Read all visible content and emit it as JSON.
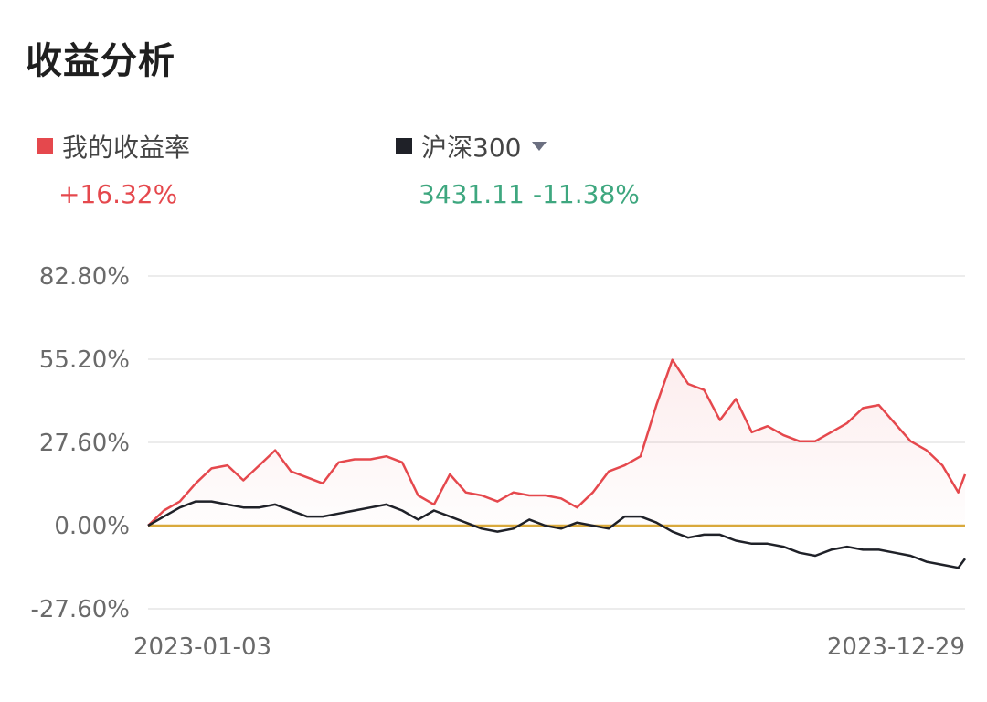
{
  "header": {
    "title": "收益分析"
  },
  "legend": {
    "mine": {
      "label": "我的收益率",
      "value": "+16.32%",
      "color": "#e5484d"
    },
    "index": {
      "label": "沪深300",
      "close": "3431.11",
      "change": "-11.38%",
      "color": "#1f2128"
    }
  },
  "colors": {
    "positive": "#e5484d",
    "negative": "#3ea77f",
    "baseline": "#d9a93c",
    "grid": "#e6e6e6"
  },
  "chart_data": {
    "type": "line",
    "y_ticks": [
      "82.80%",
      "55.20%",
      "27.60%",
      "0.00%",
      "-27.60%"
    ],
    "y_tick_values": [
      82.8,
      55.2,
      27.6,
      0,
      -27.6
    ],
    "ylim": [
      -27.6,
      82.8
    ],
    "x_labels": [
      "2023-01-03",
      "2023-12-29"
    ],
    "xlim": [
      "2023-01-03",
      "2023-12-29"
    ],
    "grid": "horizontal",
    "series": [
      {
        "name": "我的收益率",
        "color": "#e5484d",
        "area": true,
        "points": [
          [
            "2023-01-03",
            0
          ],
          [
            "2023-01-10",
            5
          ],
          [
            "2023-01-17",
            8
          ],
          [
            "2023-01-24",
            14
          ],
          [
            "2023-01-31",
            19
          ],
          [
            "2023-02-07",
            20
          ],
          [
            "2023-02-14",
            15
          ],
          [
            "2023-02-21",
            20
          ],
          [
            "2023-02-28",
            25
          ],
          [
            "2023-03-07",
            18
          ],
          [
            "2023-03-14",
            16
          ],
          [
            "2023-03-21",
            14
          ],
          [
            "2023-03-28",
            21
          ],
          [
            "2023-04-04",
            22
          ],
          [
            "2023-04-11",
            22
          ],
          [
            "2023-04-18",
            23
          ],
          [
            "2023-04-25",
            21
          ],
          [
            "2023-05-02",
            10
          ],
          [
            "2023-05-09",
            7
          ],
          [
            "2023-05-16",
            17
          ],
          [
            "2023-05-23",
            11
          ],
          [
            "2023-05-30",
            10
          ],
          [
            "2023-06-06",
            8
          ],
          [
            "2023-06-13",
            11
          ],
          [
            "2023-06-20",
            10
          ],
          [
            "2023-06-27",
            10
          ],
          [
            "2023-07-04",
            9
          ],
          [
            "2023-07-11",
            6
          ],
          [
            "2023-07-18",
            11
          ],
          [
            "2023-07-25",
            18
          ],
          [
            "2023-08-01",
            20
          ],
          [
            "2023-08-08",
            23
          ],
          [
            "2023-08-15",
            40
          ],
          [
            "2023-08-22",
            55
          ],
          [
            "2023-08-29",
            47
          ],
          [
            "2023-09-05",
            45
          ],
          [
            "2023-09-12",
            35
          ],
          [
            "2023-09-19",
            42
          ],
          [
            "2023-09-26",
            31
          ],
          [
            "2023-10-03",
            33
          ],
          [
            "2023-10-10",
            30
          ],
          [
            "2023-10-17",
            28
          ],
          [
            "2023-10-24",
            28
          ],
          [
            "2023-10-31",
            31
          ],
          [
            "2023-11-07",
            34
          ],
          [
            "2023-11-14",
            39
          ],
          [
            "2023-11-21",
            40
          ],
          [
            "2023-11-28",
            34
          ],
          [
            "2023-12-05",
            28
          ],
          [
            "2023-12-12",
            25
          ],
          [
            "2023-12-19",
            20
          ],
          [
            "2023-12-26",
            11
          ],
          [
            "2023-12-29",
            17
          ]
        ]
      },
      {
        "name": "沪深300",
        "color": "#1f2128",
        "area": false,
        "points": [
          [
            "2023-01-03",
            0
          ],
          [
            "2023-01-10",
            3
          ],
          [
            "2023-01-17",
            6
          ],
          [
            "2023-01-24",
            8
          ],
          [
            "2023-01-31",
            8
          ],
          [
            "2023-02-07",
            7
          ],
          [
            "2023-02-14",
            6
          ],
          [
            "2023-02-21",
            6
          ],
          [
            "2023-02-28",
            7
          ],
          [
            "2023-03-07",
            5
          ],
          [
            "2023-03-14",
            3
          ],
          [
            "2023-03-21",
            3
          ],
          [
            "2023-03-28",
            4
          ],
          [
            "2023-04-04",
            5
          ],
          [
            "2023-04-11",
            6
          ],
          [
            "2023-04-18",
            7
          ],
          [
            "2023-04-25",
            5
          ],
          [
            "2023-05-02",
            2
          ],
          [
            "2023-05-09",
            5
          ],
          [
            "2023-05-16",
            3
          ],
          [
            "2023-05-23",
            1
          ],
          [
            "2023-05-30",
            -1
          ],
          [
            "2023-06-06",
            -2
          ],
          [
            "2023-06-13",
            -1
          ],
          [
            "2023-06-20",
            2
          ],
          [
            "2023-06-27",
            0
          ],
          [
            "2023-07-04",
            -1
          ],
          [
            "2023-07-11",
            1
          ],
          [
            "2023-07-18",
            0
          ],
          [
            "2023-07-25",
            -1
          ],
          [
            "2023-08-01",
            3
          ],
          [
            "2023-08-08",
            3
          ],
          [
            "2023-08-15",
            1
          ],
          [
            "2023-08-22",
            -2
          ],
          [
            "2023-08-29",
            -4
          ],
          [
            "2023-09-05",
            -3
          ],
          [
            "2023-09-12",
            -3
          ],
          [
            "2023-09-19",
            -5
          ],
          [
            "2023-09-26",
            -6
          ],
          [
            "2023-10-03",
            -6
          ],
          [
            "2023-10-10",
            -7
          ],
          [
            "2023-10-17",
            -9
          ],
          [
            "2023-10-24",
            -10
          ],
          [
            "2023-10-31",
            -8
          ],
          [
            "2023-11-07",
            -7
          ],
          [
            "2023-11-14",
            -8
          ],
          [
            "2023-11-21",
            -8
          ],
          [
            "2023-11-28",
            -9
          ],
          [
            "2023-12-05",
            -10
          ],
          [
            "2023-12-12",
            -12
          ],
          [
            "2023-12-19",
            -13
          ],
          [
            "2023-12-26",
            -14
          ],
          [
            "2023-12-29",
            -11
          ]
        ]
      }
    ]
  }
}
